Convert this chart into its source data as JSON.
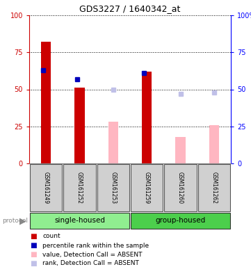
{
  "title": "GDS3227 / 1640342_at",
  "samples": [
    "GSM161249",
    "GSM161252",
    "GSM161253",
    "GSM161259",
    "GSM161260",
    "GSM161262"
  ],
  "groups": [
    "single-housed",
    "single-housed",
    "single-housed",
    "group-housed",
    "group-housed",
    "group-housed"
  ],
  "group_colors": {
    "single-housed": "#90EE90",
    "group-housed": "#4CCF4C"
  },
  "count_values": [
    82,
    51,
    null,
    62,
    null,
    null
  ],
  "rank_values": [
    63,
    57,
    null,
    61,
    null,
    null
  ],
  "absent_value_values": [
    null,
    null,
    28,
    null,
    18,
    26
  ],
  "absent_rank_values": [
    null,
    null,
    50,
    null,
    47,
    48
  ],
  "count_color": "#CC0000",
  "rank_color": "#0000BB",
  "absent_value_color": "#FFB6C1",
  "absent_rank_color": "#C0C0E8",
  "ylim": [
    0,
    100
  ],
  "yticks": [
    0,
    25,
    50,
    75,
    100
  ],
  "protocol_label": "protocol",
  "legend_items": [
    {
      "label": "count",
      "color": "#CC0000"
    },
    {
      "label": "percentile rank within the sample",
      "color": "#0000BB"
    },
    {
      "label": "value, Detection Call = ABSENT",
      "color": "#FFB6C1"
    },
    {
      "label": "rank, Detection Call = ABSENT",
      "color": "#C0C0E8"
    }
  ]
}
